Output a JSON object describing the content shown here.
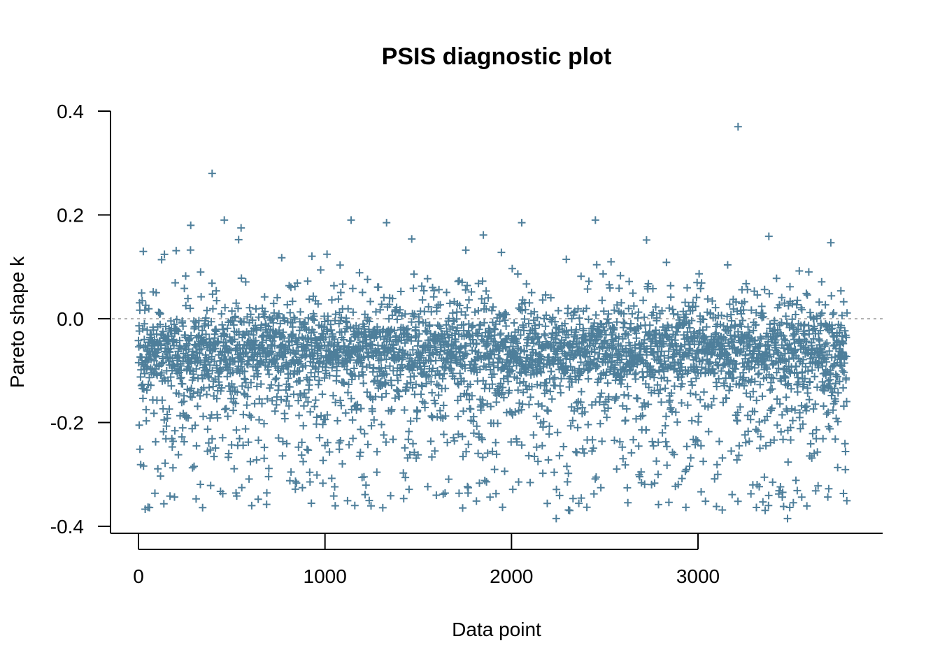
{
  "chart_data": {
    "type": "scatter",
    "title": "PSIS diagnostic plot",
    "xlabel": "Data point",
    "ylabel": "Pareto shape k",
    "xlim": [
      0,
      3800
    ],
    "ylim": [
      -0.4,
      0.4
    ],
    "x_ticks": [
      0,
      1000,
      2000,
      3000
    ],
    "x_tick_labels": [
      "0",
      "1000",
      "2000",
      "3000"
    ],
    "y_ticks": [
      -0.4,
      -0.2,
      0.0,
      0.2,
      0.4
    ],
    "y_tick_labels": [
      "-0.4",
      "-0.2",
      "0.0",
      "0.2",
      "0.4"
    ],
    "reference_line_y": 0.0,
    "marker": "+",
    "point_color": "#4e7f9b",
    "n_points": 3800,
    "series": [
      {
        "distribution": "dense band around y = -0.06, spread roughly -0.37 to 0.19",
        "notable_points": [
          {
            "x": 395,
            "y": 0.28
          },
          {
            "x": 3215,
            "y": 0.37
          },
          {
            "x": 2450,
            "y": 0.19
          },
          {
            "x": 1140,
            "y": 0.19
          },
          {
            "x": 460,
            "y": 0.19
          },
          {
            "x": 2055,
            "y": 0.185
          },
          {
            "x": 1330,
            "y": 0.185
          },
          {
            "x": 280,
            "y": 0.18
          },
          {
            "x": 550,
            "y": 0.175
          },
          {
            "x": 3480,
            "y": -0.385
          },
          {
            "x": 2240,
            "y": -0.385
          }
        ]
      }
    ]
  }
}
